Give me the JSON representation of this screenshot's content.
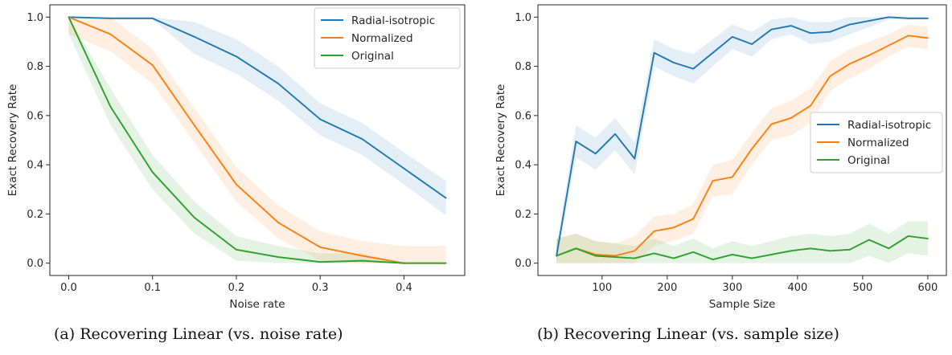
{
  "colors": {
    "Radial-isotropic": "#1f77b4",
    "Normalized": "#ff7f0e",
    "Original": "#2ca02c"
  },
  "chart_data": [
    {
      "type": "line",
      "caption": "(a) Recovering Linear (vs. noise rate)",
      "xlabel": "Noise rate",
      "ylabel": "Exact Recovery Rate",
      "xlim": [
        -0.0225,
        0.4725
      ],
      "ylim": [
        -0.05,
        1.05
      ],
      "xticks": [
        0.0,
        0.1,
        0.2,
        0.3,
        0.4
      ],
      "xtick_labels": [
        "0.0",
        "0.1",
        "0.2",
        "0.3",
        "0.4"
      ],
      "yticks": [
        0.0,
        0.2,
        0.4,
        0.6,
        0.8,
        1.0
      ],
      "ytick_labels": [
        "0.0",
        "0.2",
        "0.4",
        "0.6",
        "0.8",
        "1.0"
      ],
      "legend_position": "top-right",
      "x": [
        0.0,
        0.05,
        0.1,
        0.15,
        0.2,
        0.25,
        0.3,
        0.35,
        0.4,
        0.45
      ],
      "series": [
        {
          "name": "Radial-isotropic",
          "values": [
            1.0,
            0.995,
            0.995,
            0.92,
            0.84,
            0.73,
            0.585,
            0.505,
            0.385,
            0.265
          ],
          "lower": [
            1.0,
            0.99,
            0.99,
            0.85,
            0.77,
            0.66,
            0.52,
            0.44,
            0.32,
            0.195
          ],
          "upper": [
            1.0,
            1.0,
            1.0,
            0.98,
            0.91,
            0.8,
            0.65,
            0.57,
            0.45,
            0.335
          ]
        },
        {
          "name": "Normalized",
          "values": [
            1.0,
            0.93,
            0.805,
            0.56,
            0.32,
            0.165,
            0.065,
            0.03,
            0.0,
            0.0
          ],
          "lower": [
            0.93,
            0.86,
            0.73,
            0.49,
            0.25,
            0.1,
            0.01,
            0.0,
            0.0,
            0.0
          ],
          "upper": [
            1.0,
            1.0,
            0.87,
            0.63,
            0.39,
            0.235,
            0.13,
            0.09,
            0.07,
            0.07
          ]
        },
        {
          "name": "Original",
          "values": [
            1.0,
            0.635,
            0.37,
            0.185,
            0.055,
            0.025,
            0.005,
            0.01,
            0.0,
            0.0
          ],
          "lower": [
            0.93,
            0.56,
            0.3,
            0.12,
            0.01,
            0.0,
            0.0,
            0.0,
            0.0,
            0.0
          ],
          "upper": [
            1.0,
            0.71,
            0.44,
            0.25,
            0.11,
            0.07,
            0.04,
            0.04,
            0.0,
            0.0
          ]
        }
      ]
    },
    {
      "type": "line",
      "caption": "(b) Recovering Linear (vs. sample size)",
      "xlabel": "Sample Size",
      "ylabel": "Exact Recovery Rate",
      "xlim": [
        1.5,
        628.5
      ],
      "ylim": [
        -0.05,
        1.05
      ],
      "xticks": [
        100,
        200,
        300,
        400,
        500,
        600
      ],
      "xtick_labels": [
        "100",
        "200",
        "300",
        "400",
        "500",
        "600"
      ],
      "yticks": [
        0.0,
        0.2,
        0.4,
        0.6,
        0.8,
        1.0
      ],
      "ytick_labels": [
        "0.0",
        "0.2",
        "0.4",
        "0.6",
        "0.8",
        "1.0"
      ],
      "legend_position": "center-right",
      "x": [
        30,
        60,
        90,
        120,
        150,
        180,
        210,
        240,
        270,
        300,
        330,
        360,
        390,
        420,
        450,
        480,
        510,
        540,
        570,
        600
      ],
      "series": [
        {
          "name": "Radial-isotropic",
          "values": [
            0.03,
            0.495,
            0.445,
            0.525,
            0.425,
            0.855,
            0.815,
            0.79,
            0.855,
            0.92,
            0.89,
            0.95,
            0.965,
            0.935,
            0.94,
            0.97,
            0.985,
            1.0,
            0.995,
            0.995
          ],
          "lower": [
            0.0,
            0.43,
            0.38,
            0.46,
            0.36,
            0.8,
            0.76,
            0.73,
            0.8,
            0.87,
            0.84,
            0.91,
            0.93,
            0.89,
            0.9,
            0.93,
            0.96,
            0.99,
            0.99,
            0.99
          ],
          "upper": [
            0.07,
            0.56,
            0.51,
            0.59,
            0.49,
            0.91,
            0.87,
            0.85,
            0.91,
            0.97,
            0.94,
            0.99,
            1.0,
            0.98,
            0.98,
            1.0,
            1.0,
            1.0,
            1.0,
            1.0
          ]
        },
        {
          "name": "Normalized",
          "values": [
            0.03,
            0.06,
            0.035,
            0.03,
            0.05,
            0.13,
            0.145,
            0.18,
            0.335,
            0.35,
            0.465,
            0.565,
            0.59,
            0.64,
            0.76,
            0.81,
            0.845,
            0.885,
            0.925,
            0.915
          ],
          "lower": [
            0.0,
            0.0,
            0.0,
            0.0,
            0.0,
            0.07,
            0.09,
            0.12,
            0.27,
            0.28,
            0.4,
            0.5,
            0.52,
            0.57,
            0.7,
            0.75,
            0.79,
            0.84,
            0.88,
            0.87
          ],
          "upper": [
            0.1,
            0.12,
            0.09,
            0.08,
            0.11,
            0.19,
            0.2,
            0.24,
            0.4,
            0.42,
            0.53,
            0.63,
            0.66,
            0.71,
            0.82,
            0.87,
            0.9,
            0.93,
            0.97,
            0.96
          ]
        },
        {
          "name": "Original",
          "values": [
            0.03,
            0.06,
            0.03,
            0.025,
            0.02,
            0.04,
            0.02,
            0.045,
            0.015,
            0.035,
            0.02,
            0.035,
            0.05,
            0.06,
            0.05,
            0.055,
            0.095,
            0.06,
            0.11,
            0.1
          ],
          "lower": [
            0.0,
            0.0,
            0.0,
            0.0,
            0.0,
            0.0,
            0.0,
            0.0,
            0.0,
            0.0,
            0.0,
            0.0,
            0.0,
            0.0,
            0.0,
            0.0,
            0.03,
            0.0,
            0.04,
            0.03
          ],
          "upper": [
            0.1,
            0.12,
            0.09,
            0.08,
            0.07,
            0.1,
            0.07,
            0.1,
            0.06,
            0.09,
            0.07,
            0.09,
            0.11,
            0.12,
            0.11,
            0.12,
            0.16,
            0.12,
            0.17,
            0.17
          ]
        }
      ]
    }
  ]
}
